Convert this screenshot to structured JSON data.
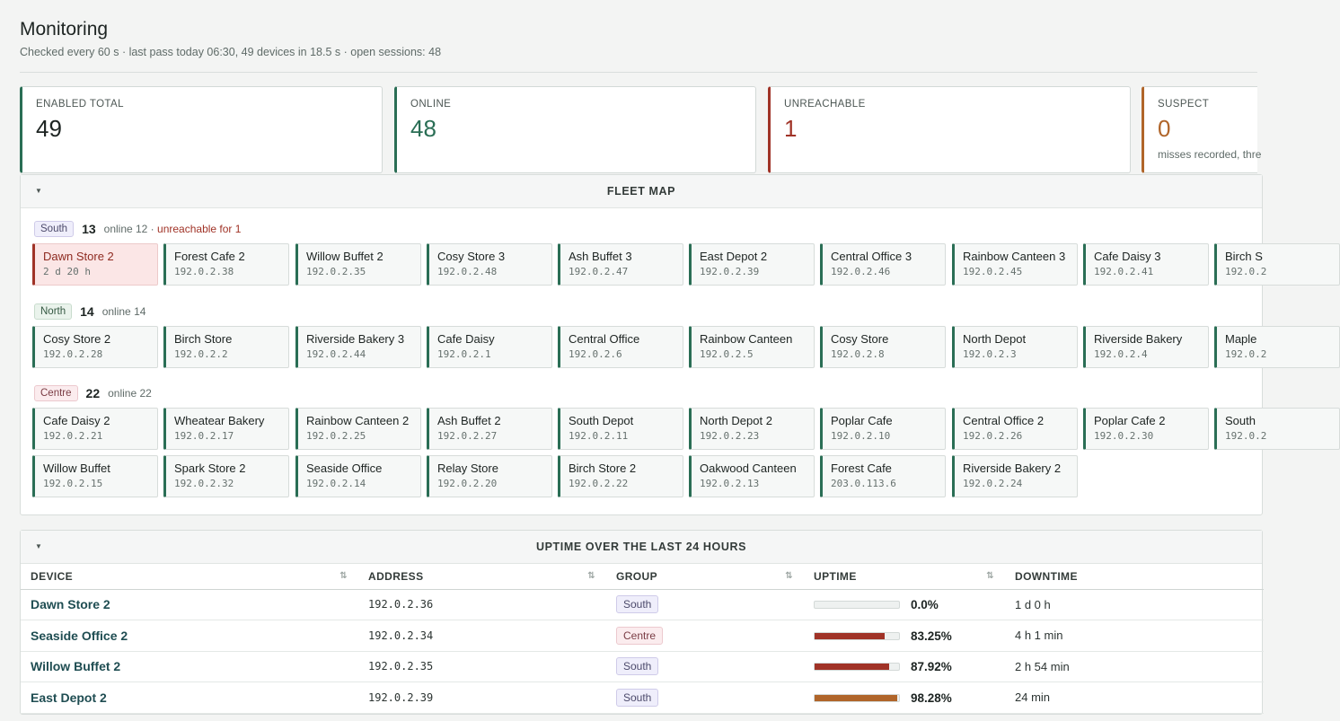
{
  "header": {
    "title": "Monitoring",
    "subtitle": "Checked every 60 s · last pass today 06:30, 49 devices in 18.5 s · open sessions: 48"
  },
  "stats": [
    {
      "label": "ENABLED TOTAL",
      "value": "49",
      "note": ""
    },
    {
      "label": "ONLINE",
      "value": "48",
      "note": ""
    },
    {
      "label": "UNREACHABLE",
      "value": "1",
      "note": ""
    },
    {
      "label": "SUSPECT",
      "value": "0",
      "note": "misses recorded, thre"
    }
  ],
  "colors": {
    "online": "#2a6e55",
    "unreachable": "#a03327",
    "suspect": "#b0652a"
  },
  "fleet_map": {
    "title": "FLEET MAP",
    "caret_icon": "caret-down-icon",
    "groups": [
      {
        "tag": "South",
        "count": "13",
        "online": "online 12 ·",
        "unreachable": "unreachable for 1",
        "devices": [
          {
            "name": "Dawn Store 2",
            "addr": "2 d 20 h",
            "down": true
          },
          {
            "name": "Forest Cafe 2",
            "addr": "192.0.2.38"
          },
          {
            "name": "Willow Buffet 2",
            "addr": "192.0.2.35"
          },
          {
            "name": "Cosy Store 3",
            "addr": "192.0.2.48"
          },
          {
            "name": "Ash Buffet 3",
            "addr": "192.0.2.47"
          },
          {
            "name": "East Depot 2",
            "addr": "192.0.2.39"
          },
          {
            "name": "Central Office 3",
            "addr": "192.0.2.46"
          },
          {
            "name": "Rainbow Canteen 3",
            "addr": "192.0.2.45"
          },
          {
            "name": "Cafe Daisy 3",
            "addr": "192.0.2.41"
          },
          {
            "name": "Birch S",
            "addr": "192.0.2"
          }
        ]
      },
      {
        "tag": "North",
        "count": "14",
        "online": "online 14",
        "unreachable": "",
        "devices": [
          {
            "name": "Cosy Store 2",
            "addr": "192.0.2.28"
          },
          {
            "name": "Birch Store",
            "addr": "192.0.2.2"
          },
          {
            "name": "Riverside Bakery 3",
            "addr": "192.0.2.44"
          },
          {
            "name": "Cafe Daisy",
            "addr": "192.0.2.1"
          },
          {
            "name": "Central Office",
            "addr": "192.0.2.6"
          },
          {
            "name": "Rainbow Canteen",
            "addr": "192.0.2.5"
          },
          {
            "name": "Cosy Store",
            "addr": "192.0.2.8"
          },
          {
            "name": "North Depot",
            "addr": "192.0.2.3"
          },
          {
            "name": "Riverside Bakery",
            "addr": "192.0.2.4"
          },
          {
            "name": "Maple",
            "addr": "192.0.2"
          }
        ]
      },
      {
        "tag": "Centre",
        "count": "22",
        "online": "online 22",
        "unreachable": "",
        "devices": [
          {
            "name": "Cafe Daisy 2",
            "addr": "192.0.2.21"
          },
          {
            "name": "Wheatear Bakery",
            "addr": "192.0.2.17"
          },
          {
            "name": "Rainbow Canteen 2",
            "addr": "192.0.2.25"
          },
          {
            "name": "Ash Buffet 2",
            "addr": "192.0.2.27"
          },
          {
            "name": "South Depot",
            "addr": "192.0.2.11"
          },
          {
            "name": "North Depot 2",
            "addr": "192.0.2.23"
          },
          {
            "name": "Poplar Cafe",
            "addr": "192.0.2.10"
          },
          {
            "name": "Central Office 2",
            "addr": "192.0.2.26"
          },
          {
            "name": "Poplar Cafe 2",
            "addr": "192.0.2.30"
          },
          {
            "name": "South",
            "addr": "192.0.2"
          },
          {
            "name": "Willow Buffet",
            "addr": "192.0.2.15"
          },
          {
            "name": "Spark Store 2",
            "addr": "192.0.2.32"
          },
          {
            "name": "Seaside Office",
            "addr": "192.0.2.14"
          },
          {
            "name": "Relay Store",
            "addr": "192.0.2.20"
          },
          {
            "name": "Birch Store 2",
            "addr": "192.0.2.22"
          },
          {
            "name": "Oakwood Canteen",
            "addr": "192.0.2.13"
          },
          {
            "name": "Forest Cafe",
            "addr": "203.0.113.6"
          },
          {
            "name": "Riverside Bakery 2",
            "addr": "192.0.2.24"
          }
        ]
      }
    ]
  },
  "uptime": {
    "title": "UPTIME OVER THE LAST 24 HOURS",
    "sort_icon": "sort-icon",
    "columns": [
      "DEVICE",
      "ADDRESS",
      "GROUP",
      "UPTIME",
      "DOWNTIME"
    ],
    "rows": [
      {
        "device": "Dawn Store 2",
        "address": "192.0.2.36",
        "group": "South",
        "uptime": "0.0%",
        "uptime_fraction": 0.0,
        "bar_color": "#a03327",
        "downtime": "1 d 0 h"
      },
      {
        "device": "Seaside Office 2",
        "address": "192.0.2.34",
        "group": "Centre",
        "uptime": "83.25%",
        "uptime_fraction": 0.8325,
        "bar_color": "#a03327",
        "downtime": "4 h 1 min"
      },
      {
        "device": "Willow Buffet 2",
        "address": "192.0.2.35",
        "group": "South",
        "uptime": "87.92%",
        "uptime_fraction": 0.8792,
        "bar_color": "#a03327",
        "downtime": "2 h 54 min"
      },
      {
        "device": "East Depot 2",
        "address": "192.0.2.39",
        "group": "South",
        "uptime": "98.28%",
        "uptime_fraction": 0.9828,
        "bar_color": "#b0652a",
        "downtime": "24 min"
      }
    ]
  }
}
